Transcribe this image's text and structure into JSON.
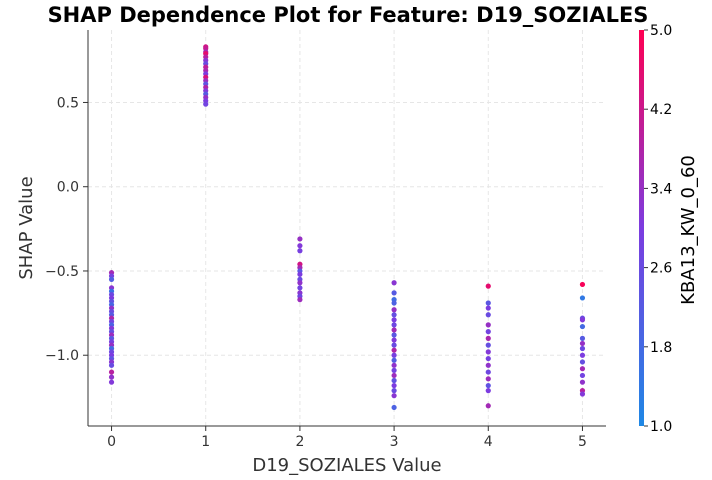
{
  "chart_data": {
    "type": "scatter",
    "title": "SHAP Dependence Plot for Feature: D19_SOZIALES",
    "xlabel": "D19_SOZIALES Value",
    "ylabel": "SHAP Value",
    "xlim": [
      -0.25,
      5.25
    ],
    "ylim": [
      -1.42,
      0.93
    ],
    "x_ticks": [
      0,
      1,
      2,
      3,
      4,
      5
    ],
    "y_ticks": [
      -1.0,
      -0.5,
      0.0,
      0.5
    ],
    "y_tick_labels": [
      "−1.0",
      "−0.5",
      "0.0",
      "0.5"
    ],
    "grid": true,
    "colorbar": {
      "label": "KBA13_KW_0_60",
      "range": [
        1.0,
        5.0
      ],
      "ticks": [
        1.0,
        1.8,
        2.6,
        3.4,
        4.2,
        5.0
      ],
      "tick_labels": [
        "1.0",
        "1.8",
        "2.6",
        "3.4",
        "4.2",
        "5.0"
      ],
      "colors": [
        "#1e88e5",
        "#7c3ce0",
        "#ff0052"
      ]
    },
    "points": [
      {
        "x": 0,
        "y": -0.51,
        "c": 3.6
      },
      {
        "x": 0,
        "y": -0.53,
        "c": 2.9
      },
      {
        "x": 0,
        "y": -0.55,
        "c": 2.1
      },
      {
        "x": 0,
        "y": -0.6,
        "c": 3.2
      },
      {
        "x": 0,
        "y": -0.62,
        "c": 1.6
      },
      {
        "x": 0,
        "y": -0.64,
        "c": 2.7
      },
      {
        "x": 0,
        "y": -0.66,
        "c": 3.0
      },
      {
        "x": 0,
        "y": -0.68,
        "c": 2.4
      },
      {
        "x": 0,
        "y": -0.7,
        "c": 1.9
      },
      {
        "x": 0,
        "y": -0.72,
        "c": 3.3
      },
      {
        "x": 0,
        "y": -0.74,
        "c": 2.6
      },
      {
        "x": 0,
        "y": -0.76,
        "c": 2.2
      },
      {
        "x": 0,
        "y": -0.78,
        "c": 3.7
      },
      {
        "x": 0,
        "y": -0.8,
        "c": 2.8
      },
      {
        "x": 0,
        "y": -0.82,
        "c": 2.0
      },
      {
        "x": 0,
        "y": -0.84,
        "c": 3.1
      },
      {
        "x": 0,
        "y": -0.86,
        "c": 2.5
      },
      {
        "x": 0,
        "y": -0.88,
        "c": 3.5
      },
      {
        "x": 0,
        "y": -0.9,
        "c": 2.3
      },
      {
        "x": 0,
        "y": -0.92,
        "c": 2.9
      },
      {
        "x": 0,
        "y": -0.94,
        "c": 3.4
      },
      {
        "x": 0,
        "y": -0.96,
        "c": 1.8
      },
      {
        "x": 0,
        "y": -0.98,
        "c": 2.7
      },
      {
        "x": 0,
        "y": -1.0,
        "c": 3.0
      },
      {
        "x": 0,
        "y": -1.02,
        "c": 2.4
      },
      {
        "x": 0,
        "y": -1.04,
        "c": 3.2
      },
      {
        "x": 0,
        "y": -1.06,
        "c": 2.6
      },
      {
        "x": 0,
        "y": -1.1,
        "c": 3.9
      },
      {
        "x": 0,
        "y": -1.13,
        "c": 3.3
      },
      {
        "x": 0,
        "y": -1.16,
        "c": 3.1
      },
      {
        "x": 1,
        "y": 0.83,
        "c": 4.3
      },
      {
        "x": 1,
        "y": 0.82,
        "c": 4.1
      },
      {
        "x": 1,
        "y": 0.8,
        "c": 3.6
      },
      {
        "x": 1,
        "y": 0.79,
        "c": 4.6
      },
      {
        "x": 1,
        "y": 0.77,
        "c": 3.9
      },
      {
        "x": 1,
        "y": 0.75,
        "c": 3.2
      },
      {
        "x": 1,
        "y": 0.73,
        "c": 2.6
      },
      {
        "x": 1,
        "y": 0.71,
        "c": 4.0
      },
      {
        "x": 1,
        "y": 0.69,
        "c": 3.7
      },
      {
        "x": 1,
        "y": 0.67,
        "c": 3.0
      },
      {
        "x": 1,
        "y": 0.65,
        "c": 4.4
      },
      {
        "x": 1,
        "y": 0.63,
        "c": 3.5
      },
      {
        "x": 1,
        "y": 0.61,
        "c": 2.4
      },
      {
        "x": 1,
        "y": 0.59,
        "c": 3.8
      },
      {
        "x": 1,
        "y": 0.57,
        "c": 3.1
      },
      {
        "x": 1,
        "y": 0.55,
        "c": 2.2
      },
      {
        "x": 1,
        "y": 0.53,
        "c": 3.4
      },
      {
        "x": 1,
        "y": 0.51,
        "c": 3.0
      },
      {
        "x": 1,
        "y": 0.49,
        "c": 2.8
      },
      {
        "x": 2,
        "y": -0.31,
        "c": 3.4
      },
      {
        "x": 2,
        "y": -0.35,
        "c": 3.1
      },
      {
        "x": 2,
        "y": -0.38,
        "c": 2.9
      },
      {
        "x": 2,
        "y": -0.46,
        "c": 4.3
      },
      {
        "x": 2,
        "y": -0.48,
        "c": 3.6
      },
      {
        "x": 2,
        "y": -0.5,
        "c": 2.3
      },
      {
        "x": 2,
        "y": -0.52,
        "c": 3.0
      },
      {
        "x": 2,
        "y": -0.55,
        "c": 2.6
      },
      {
        "x": 2,
        "y": -0.57,
        "c": 3.3
      },
      {
        "x": 2,
        "y": -0.6,
        "c": 2.8
      },
      {
        "x": 2,
        "y": -0.63,
        "c": 3.2
      },
      {
        "x": 2,
        "y": -0.65,
        "c": 2.7
      },
      {
        "x": 2,
        "y": -0.67,
        "c": 3.5
      },
      {
        "x": 3,
        "y": -0.57,
        "c": 3.2
      },
      {
        "x": 3,
        "y": -0.63,
        "c": 2.2
      },
      {
        "x": 3,
        "y": -0.67,
        "c": 1.7
      },
      {
        "x": 3,
        "y": -0.69,
        "c": 2.0
      },
      {
        "x": 3,
        "y": -0.73,
        "c": 3.4
      },
      {
        "x": 3,
        "y": -0.76,
        "c": 2.5
      },
      {
        "x": 3,
        "y": -0.79,
        "c": 3.0
      },
      {
        "x": 3,
        "y": -0.82,
        "c": 2.7
      },
      {
        "x": 3,
        "y": -0.85,
        "c": 3.6
      },
      {
        "x": 3,
        "y": -0.88,
        "c": 2.3
      },
      {
        "x": 3,
        "y": -0.91,
        "c": 3.1
      },
      {
        "x": 3,
        "y": -0.94,
        "c": 2.6
      },
      {
        "x": 3,
        "y": -0.97,
        "c": 3.8
      },
      {
        "x": 3,
        "y": -1.0,
        "c": 2.9
      },
      {
        "x": 3,
        "y": -1.03,
        "c": 2.1
      },
      {
        "x": 3,
        "y": -1.06,
        "c": 3.3
      },
      {
        "x": 3,
        "y": -1.09,
        "c": 2.8
      },
      {
        "x": 3,
        "y": -1.12,
        "c": 3.5
      },
      {
        "x": 3,
        "y": -1.15,
        "c": 2.4
      },
      {
        "x": 3,
        "y": -1.18,
        "c": 3.0
      },
      {
        "x": 3,
        "y": -1.21,
        "c": 2.6
      },
      {
        "x": 3,
        "y": -1.24,
        "c": 3.2
      },
      {
        "x": 3,
        "y": -1.31,
        "c": 2.0
      },
      {
        "x": 4,
        "y": -0.59,
        "c": 4.6
      },
      {
        "x": 4,
        "y": -0.69,
        "c": 2.3
      },
      {
        "x": 4,
        "y": -0.72,
        "c": 3.0
      },
      {
        "x": 4,
        "y": -0.76,
        "c": 2.6
      },
      {
        "x": 4,
        "y": -0.82,
        "c": 3.4
      },
      {
        "x": 4,
        "y": -0.86,
        "c": 2.8
      },
      {
        "x": 4,
        "y": -0.9,
        "c": 3.7
      },
      {
        "x": 4,
        "y": -0.94,
        "c": 2.5
      },
      {
        "x": 4,
        "y": -0.98,
        "c": 3.1
      },
      {
        "x": 4,
        "y": -1.02,
        "c": 2.9
      },
      {
        "x": 4,
        "y": -1.06,
        "c": 3.3
      },
      {
        "x": 4,
        "y": -1.1,
        "c": 2.7
      },
      {
        "x": 4,
        "y": -1.14,
        "c": 3.5
      },
      {
        "x": 4,
        "y": -1.18,
        "c": 2.4
      },
      {
        "x": 4,
        "y": -1.21,
        "c": 3.0
      },
      {
        "x": 4,
        "y": -1.3,
        "c": 3.6
      },
      {
        "x": 5,
        "y": -0.58,
        "c": 4.9
      },
      {
        "x": 5,
        "y": -0.66,
        "c": 1.4
      },
      {
        "x": 5,
        "y": -0.78,
        "c": 2.6
      },
      {
        "x": 5,
        "y": -0.79,
        "c": 3.1
      },
      {
        "x": 5,
        "y": -0.83,
        "c": 1.8
      },
      {
        "x": 5,
        "y": -0.9,
        "c": 2.2
      },
      {
        "x": 5,
        "y": -0.93,
        "c": 3.4
      },
      {
        "x": 5,
        "y": -0.96,
        "c": 2.7
      },
      {
        "x": 5,
        "y": -1.0,
        "c": 3.0
      },
      {
        "x": 5,
        "y": -1.04,
        "c": 2.5
      },
      {
        "x": 5,
        "y": -1.08,
        "c": 3.6
      },
      {
        "x": 5,
        "y": -1.12,
        "c": 2.8
      },
      {
        "x": 5,
        "y": -1.16,
        "c": 3.3
      },
      {
        "x": 5,
        "y": -1.21,
        "c": 3.9
      },
      {
        "x": 5,
        "y": -1.23,
        "c": 3.1
      }
    ]
  }
}
